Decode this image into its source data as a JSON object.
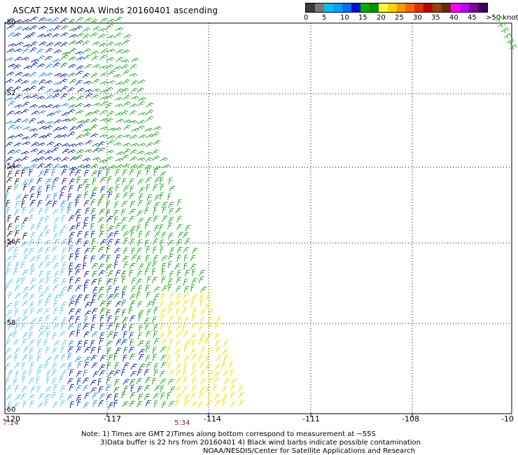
{
  "title": "ASCAT 25KM NOAA Winds 20160401 ascending",
  "legend": {
    "colors": [
      "#3a3a3a",
      "#7a7a7a",
      "#00bfff",
      "#00a0ff",
      "#0070ff",
      "#0010d0",
      "#00b000",
      "#009000",
      "#ffff33",
      "#ffd000",
      "#ff9900",
      "#ff6600",
      "#e03000",
      "#c00000",
      "#8b4513",
      "#6b2a00",
      "#ff00ff",
      "#c000ff",
      "#8000a0",
      "#400060"
    ],
    "ticks": [
      "0",
      "5",
      "10",
      "15",
      "20",
      "25",
      "30",
      "35",
      "40",
      "45",
      ">50 knots"
    ]
  },
  "axes": {
    "lon_labels": [
      "-120",
      "-117",
      "-114",
      "-111",
      "-108",
      "-10"
    ],
    "lat_labels": [
      "-50",
      "-52",
      "-54",
      "-56",
      "-58",
      "-60"
    ]
  },
  "time_labels": [
    "7:14",
    "5:34"
  ],
  "notes": {
    "line1": "Note: 1) Times are GMT 2)Times along bottom correspond to measurement at ~55S",
    "line2": "3)Data buffer is 22 hrs from 20160401 4) Black wind barbs indicate possible contamination",
    "line3": "NOAA/NESDIS/Center for Satellite Applications and Research"
  }
}
